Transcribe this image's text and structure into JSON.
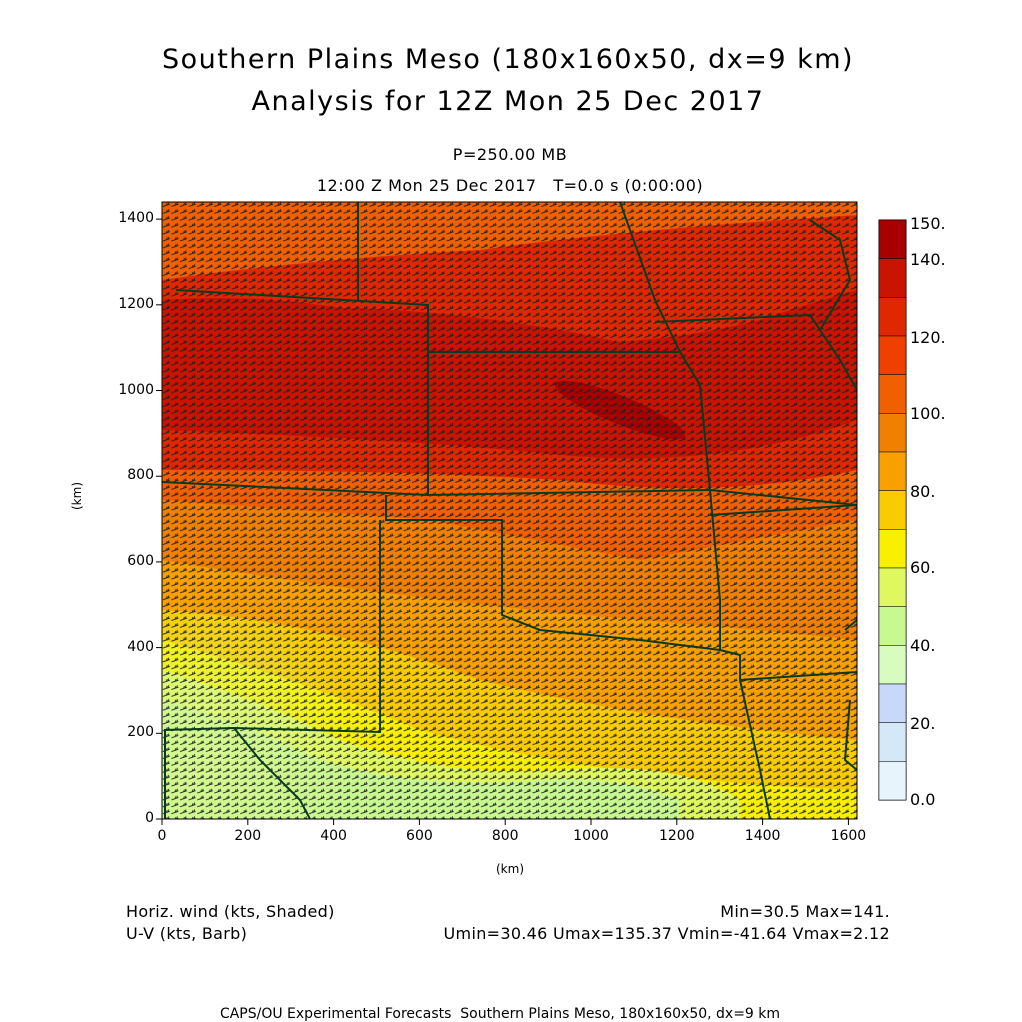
{
  "title": {
    "line1": "Southern Plains Meso (180x160x50, dx=9 km)",
    "line2": "Analysis for 12Z Mon 25 Dec 2017"
  },
  "subtitle": {
    "level": "P=250.00 MB",
    "time": "12:00 Z Mon 25 Dec 2017   T=0.0 s (0:00:00)"
  },
  "axes": {
    "x_label": "(km)",
    "y_label": "(km)",
    "x_ticks": [
      "0",
      "200",
      "400",
      "600",
      "800",
      "1000",
      "1200",
      "1400",
      "1600"
    ],
    "y_ticks": [
      "0",
      "200",
      "400",
      "600",
      "800",
      "1000",
      "1200",
      "1400"
    ],
    "x_range": [
      0,
      1620
    ],
    "y_range": [
      0,
      1440
    ]
  },
  "colorbar": {
    "labels": [
      "150.",
      "140.",
      "120.",
      "100.",
      "80.",
      "60.",
      "40.",
      "20.",
      "0.0"
    ],
    "colors_top_to_bottom": [
      "#a80000",
      "#c81400",
      "#e02800",
      "#f04000",
      "#f06000",
      "#f08000",
      "#f8a000",
      "#f8cc00",
      "#f8f000",
      "#e0f860",
      "#c8f890",
      "#d8fcc0",
      "#c8d8f8",
      "#d4e8f8",
      "#e8f4fc"
    ]
  },
  "footer": {
    "field1": "Horiz. wind (kts, Shaded)",
    "field2": "U-V (kts, Barb)",
    "minmax": "Min=30.5 Max=141.",
    "uv_stats": "Umin=30.46 Umax=135.37 Vmin=-41.64 Vmax=2.12",
    "credit": "CAPS/OU Experimental Forecasts  Southern Plains Meso, 180x160x50, dx=9 km"
  },
  "colors": {
    "borders": "#0a3a1e",
    "barbs": "#202020"
  }
}
